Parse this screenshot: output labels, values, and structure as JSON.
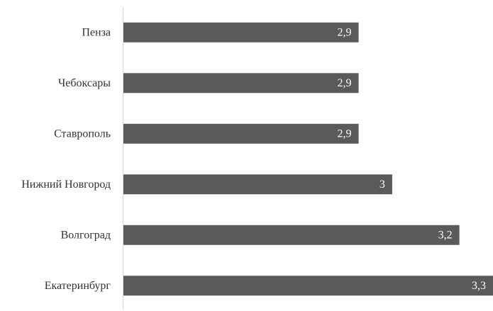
{
  "chart_data": {
    "type": "bar",
    "orientation": "horizontal",
    "categories": [
      "Пенза",
      "Чебоксары",
      "Ставрополь",
      "Нижний Новгород",
      "Волгоград",
      "Екатеринбург"
    ],
    "values": [
      2.9,
      2.9,
      2.9,
      3.0,
      3.2,
      3.3
    ],
    "value_labels": [
      "2,9",
      "2,9",
      "2,9",
      "3",
      "3,2",
      "3,3"
    ],
    "title": "",
    "xlabel": "",
    "ylabel": "",
    "xlim": [
      2.2,
      3.3
    ],
    "grid": false,
    "legend": "none",
    "bar_color": "#5a5a5a",
    "label_color": "#ffffff",
    "axis_color": "#d9d9d9"
  }
}
